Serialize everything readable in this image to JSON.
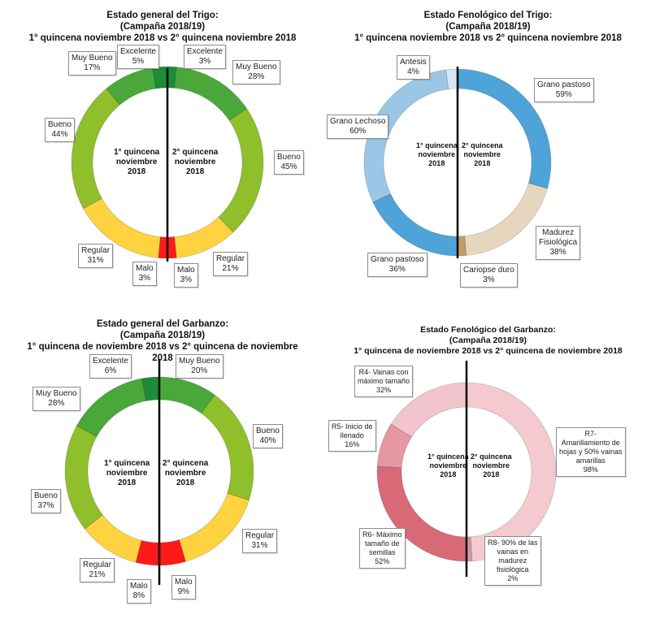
{
  "chart_data": [
    {
      "type": "pie",
      "variant": "split-donut",
      "title": [
        "Estado general del Trigo:",
        "(Campaña 2018/19)",
        "1° quincena noviembre 2018 vs 2° quincena noviembre 2018"
      ],
      "center_left": [
        "1° quincena",
        "noviembre",
        "2018"
      ],
      "center_right": [
        "2° quincena",
        "noviembre",
        "2018"
      ],
      "series": [
        {
          "name": "1° quincena noviembre 2018",
          "side": "left",
          "labels": [
            "Excelente",
            "Muy Bueno",
            "Bueno",
            "Regular",
            "Malo"
          ],
          "values": [
            5,
            17,
            44,
            31,
            3
          ],
          "value_labels": [
            "5%",
            "17%",
            "44%",
            "31%",
            "3%"
          ],
          "colors": [
            "#1e8b3a",
            "#4aa83a",
            "#8fbf2a",
            "#ffd23f",
            "#ff1a1a"
          ]
        },
        {
          "name": "2° quincena noviembre 2018",
          "side": "right",
          "labels": [
            "Excelente",
            "Muy Bueno",
            "Bueno",
            "Regular",
            "Malo"
          ],
          "values": [
            3,
            28,
            45,
            21,
            3
          ],
          "value_labels": [
            "3%",
            "28%",
            "45%",
            "21%",
            "3%"
          ],
          "colors": [
            "#1e8b3a",
            "#4aa83a",
            "#8fbf2a",
            "#ffd23f",
            "#ff1a1a"
          ]
        }
      ]
    },
    {
      "type": "pie",
      "variant": "split-donut",
      "title": [
        "Estado Fenológico del Trigo:",
        "(Campaña 2018/19)",
        "1° quincena noviembre 2018 vs 2° quincena noviembre 2018"
      ],
      "center_left": [
        "1° quincena",
        "noviembre",
        "2018"
      ],
      "center_right": [
        "2° quincena",
        "noviembre",
        "2018"
      ],
      "series": [
        {
          "name": "1° quincena noviembre 2018",
          "side": "left",
          "labels": [
            "Antesis",
            "Grano Lechoso",
            "Grano pastoso"
          ],
          "values": [
            4,
            60,
            36
          ],
          "value_labels": [
            "4%",
            "60%",
            "36%"
          ],
          "colors": [
            "#d6e6f4",
            "#9cc6e6",
            "#4ea3d8"
          ]
        },
        {
          "name": "2° quincena noviembre 2018",
          "side": "right",
          "labels": [
            "Grano pastoso",
            "Madurez Fisiológica",
            "Cariopse duro"
          ],
          "values": [
            59,
            38,
            3
          ],
          "value_labels": [
            "59%",
            "38%",
            "3%"
          ],
          "colors": [
            "#4ea3d8",
            "#e6d6bd",
            "#c29a6b"
          ]
        }
      ]
    },
    {
      "type": "pie",
      "variant": "split-donut",
      "title": [
        "Estado general del Garbanzo:",
        "(Campaña 2018/19)",
        "1° quincena de noviembre 2018 vs 2° quincena de noviembre",
        "2018"
      ],
      "center_left": [
        "1° quincena",
        "noviembre",
        "2018"
      ],
      "center_right": [
        "2° quincena",
        "noviembre",
        "2018"
      ],
      "series": [
        {
          "name": "1° quincena de noviembre 2018",
          "side": "left",
          "labels": [
            "Excelente",
            "Muy Bueno",
            "Bueno",
            "Regular",
            "Malo"
          ],
          "values": [
            6,
            28,
            37,
            21,
            8
          ],
          "value_labels": [
            "6%",
            "28%",
            "37%",
            "21%",
            "8%"
          ],
          "colors": [
            "#1e8b3a",
            "#4aa83a",
            "#8fbf2a",
            "#ffd23f",
            "#ff1a1a"
          ]
        },
        {
          "name": "2° quincena de noviembre 2018",
          "side": "right",
          "labels": [
            "Muy Bueno",
            "Bueno",
            "Regular",
            "Malo"
          ],
          "values": [
            20,
            40,
            31,
            9
          ],
          "value_labels": [
            "20%",
            "40%",
            "31%",
            "9%"
          ],
          "colors": [
            "#4aa83a",
            "#8fbf2a",
            "#ffd23f",
            "#ff1a1a"
          ]
        }
      ]
    },
    {
      "type": "pie",
      "variant": "split-donut",
      "title": [
        "Estado Fenológico del Garbanzo:",
        "(Campaña 2018/19)",
        "1° quincena de noviembre 2018 vs 2° quincena de noviembre 2018"
      ],
      "center_left": [
        "1° quincena",
        "noviembre",
        "2018"
      ],
      "center_right": [
        "2° quincena",
        "noviembre",
        "2018"
      ],
      "series": [
        {
          "name": "1° quincena de noviembre 2018",
          "side": "left",
          "labels": [
            "R4- Vainas con máximo tamaño",
            "R5- Inicio de llenado",
            "R6- Máximo tamaño de semillas"
          ],
          "values": [
            32,
            16,
            52
          ],
          "value_labels": [
            "32%",
            "16%",
            "52%"
          ],
          "colors": [
            "#f2c4cd",
            "#e597a3",
            "#d86a78"
          ]
        },
        {
          "name": "2° quincena de noviembre 2018",
          "side": "right",
          "labels": [
            "R7- Amarillamiento de hojas y 50% vainas amarillas",
            "R8- 90% de las vainas en madurez fisiológica"
          ],
          "values": [
            98,
            2
          ],
          "value_labels": [
            "98%",
            "2%"
          ],
          "colors": [
            "#f4c9d0",
            "#c99aa3"
          ]
        }
      ]
    }
  ],
  "callouts": [
    [
      {
        "lines": [
          "Excelente",
          "5%"
        ]
      },
      {
        "lines": [
          "Excelente",
          "3%"
        ]
      },
      {
        "lines": [
          "Muy Bueno",
          "17%"
        ]
      },
      {
        "lines": [
          "Muy Bueno",
          "28%"
        ]
      },
      {
        "lines": [
          "Bueno",
          "44%"
        ]
      },
      {
        "lines": [
          "Bueno",
          "45%"
        ]
      },
      {
        "lines": [
          "Regular",
          "31%"
        ]
      },
      {
        "lines": [
          "Regular",
          "21%"
        ]
      },
      {
        "lines": [
          "Malo",
          "3%"
        ]
      },
      {
        "lines": [
          "Malo",
          "3%"
        ]
      }
    ],
    [
      {
        "lines": [
          "Antesis",
          "4%"
        ]
      },
      {
        "lines": [
          "Grano pastoso",
          "59%"
        ]
      },
      {
        "lines": [
          "Grano Lechoso",
          "60%"
        ]
      },
      {
        "lines": [
          "Madurez",
          "Fisiológica",
          "38%"
        ]
      },
      {
        "lines": [
          "Grano pastoso",
          "36%"
        ]
      },
      {
        "lines": [
          "Cariopse duro",
          "3%"
        ]
      }
    ],
    [
      {
        "lines": [
          "Excelente",
          "6%"
        ]
      },
      {
        "lines": [
          "Muy Bueno",
          "20%"
        ]
      },
      {
        "lines": [
          "Muy Bueno",
          "28%"
        ]
      },
      {
        "lines": [
          "Bueno",
          "40%"
        ]
      },
      {
        "lines": [
          "Bueno",
          "37%"
        ]
      },
      {
        "lines": [
          "Regular",
          "31%"
        ]
      },
      {
        "lines": [
          "Regular",
          "21%"
        ]
      },
      {
        "lines": [
          "Malo",
          "8%"
        ]
      },
      {
        "lines": [
          "Malo",
          "9%"
        ]
      }
    ],
    [
      {
        "lines": [
          "R4- Vainas con",
          "máximo tamaño",
          "32%"
        ]
      },
      {
        "lines": [
          "R5- Inicio de",
          "llenado",
          "16%"
        ]
      },
      {
        "lines": [
          "R7-",
          "Amarillamiento de",
          "hojas y 50% vainas",
          "amarillas",
          "98%"
        ]
      },
      {
        "lines": [
          "R6- Máximo",
          "tamaño de",
          "semillas",
          "52%"
        ]
      },
      {
        "lines": [
          "R8- 90% de las",
          "vainas en",
          "madurez",
          "fisiológica",
          "2%"
        ]
      }
    ]
  ]
}
